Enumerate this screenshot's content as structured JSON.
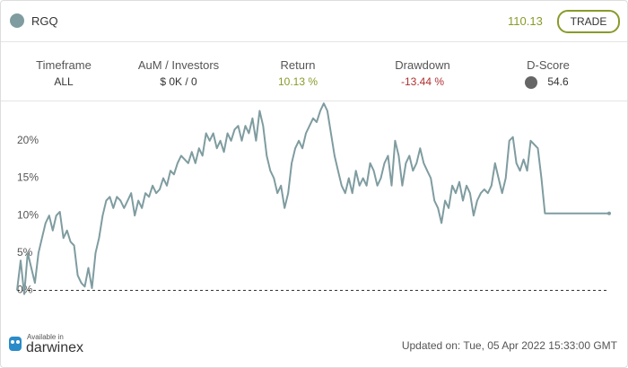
{
  "header": {
    "symbol": "RGQ",
    "price": "110.13",
    "button": "TRADE"
  },
  "stats": [
    {
      "label": "Timeframe",
      "value": "ALL"
    },
    {
      "label": "AuM / Investors",
      "value": "$ 0K / 0"
    },
    {
      "label": "Return",
      "value": "10.13 %"
    },
    {
      "label": "Drawdown",
      "value": "-13.44 %"
    },
    {
      "label": "D-Score",
      "value": "54.6"
    }
  ],
  "chart_data": {
    "type": "line",
    "color": "#7f9ca0",
    "ylim": [
      -1.5,
      25.5
    ],
    "yticks": [
      {
        "value": 0,
        "label": "0%"
      },
      {
        "value": 5,
        "label": "5%"
      },
      {
        "value": 10,
        "label": "10%"
      },
      {
        "value": 15,
        "label": "15%"
      },
      {
        "value": 20,
        "label": "20%"
      }
    ],
    "values": [
      0,
      4,
      -0.5,
      5,
      3,
      1,
      5,
      7,
      9,
      10,
      8,
      10,
      10.5,
      7,
      8,
      6.5,
      6,
      2,
      1,
      0.5,
      3,
      0.3,
      5,
      7,
      10,
      12,
      12.5,
      11,
      12.5,
      12,
      11,
      12,
      13,
      10,
      12,
      11,
      13,
      12.5,
      14,
      13,
      13.5,
      15,
      14,
      16,
      15.5,
      17,
      18,
      17.5,
      17,
      18.5,
      17,
      19,
      18,
      21,
      20,
      21,
      19,
      20,
      18.5,
      21,
      20,
      21.5,
      22,
      20,
      22,
      21,
      23,
      20,
      24,
      22,
      18,
      16,
      15,
      13,
      14,
      11,
      13,
      17,
      19,
      20,
      19,
      21,
      22,
      23,
      22.5,
      24,
      25,
      24,
      21,
      18,
      16,
      14,
      13,
      15,
      13,
      16,
      14,
      15,
      14,
      17,
      16,
      14,
      15,
      17,
      18,
      14,
      20,
      18,
      14,
      17,
      18,
      16,
      17,
      19,
      17,
      16,
      15,
      12,
      11,
      9,
      12,
      11,
      14,
      13,
      14.5,
      12,
      14,
      13,
      10,
      12,
      13,
      13.5,
      13,
      14,
      17,
      15,
      13,
      15,
      20,
      20.5,
      17,
      16,
      17.5,
      16,
      20,
      19.5,
      19,
      15,
      10.3,
      10.3,
      10.3,
      10.3,
      10.3,
      10.3,
      10.3,
      10.3,
      10.3,
      10.3,
      10.3,
      10.3,
      10.3,
      10.3,
      10.3,
      10.3,
      10.3,
      10.3,
      10.3
    ]
  },
  "footer": {
    "available": "Available in",
    "brand": "darwinex",
    "updated": "Updated on: Tue, 05 Apr 2022 15:33:00 GMT"
  }
}
